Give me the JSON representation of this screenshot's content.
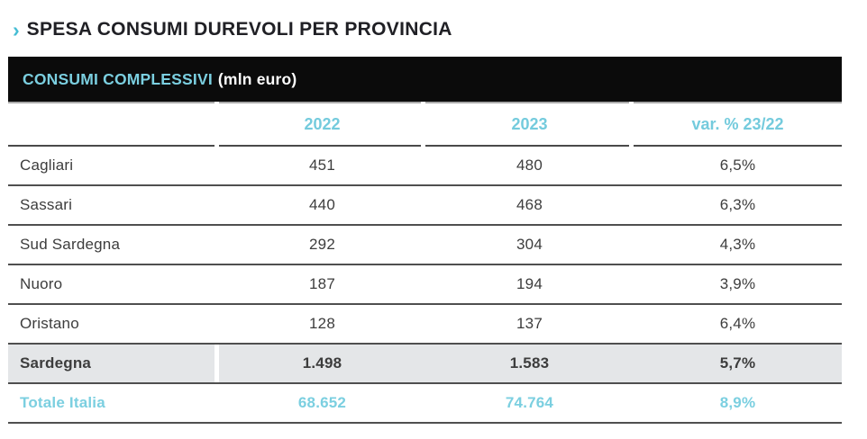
{
  "page": {
    "title": "SPESA CONSUMI DUREVOLI PER PROVINCIA",
    "title_chevron": "›"
  },
  "table": {
    "banner": {
      "highlight": "CONSUMI COMPLESSIVI",
      "suffix": "(mln euro)"
    },
    "headers": {
      "label": "",
      "y2022": "2022",
      "y2023": "2023",
      "var": "var. % 23/22"
    },
    "rows": [
      {
        "label": "Cagliari",
        "y2022": "451",
        "y2023": "480",
        "var": "6,5%"
      },
      {
        "label": "Sassari",
        "y2022": "440",
        "y2023": "468",
        "var": "6,3%"
      },
      {
        "label": "Sud Sardegna",
        "y2022": "292",
        "y2023": "304",
        "var": "4,3%"
      },
      {
        "label": "Nuoro",
        "y2022": "187",
        "y2023": "194",
        "var": "3,9%"
      },
      {
        "label": "Oristano",
        "y2022": "128",
        "y2023": "137",
        "var": "6,4%"
      }
    ],
    "region_total": {
      "label": "Sardegna",
      "y2022": "1.498",
      "y2023": "1.583",
      "var": "5,7%"
    },
    "country_total": {
      "label": "Totale Italia",
      "y2022": "68.652",
      "y2023": "74.764",
      "var": "8,9%"
    }
  },
  "colors": {
    "accent_teal": "#7bcfe0",
    "chevron_teal": "#45bdd4",
    "banner_black": "#0b0b0b",
    "body_text": "#3d3d3d",
    "region_row_bg": "#e4e6e8",
    "rule_dark": "#4a4a4a",
    "rule_light": "#a9a9a9"
  }
}
